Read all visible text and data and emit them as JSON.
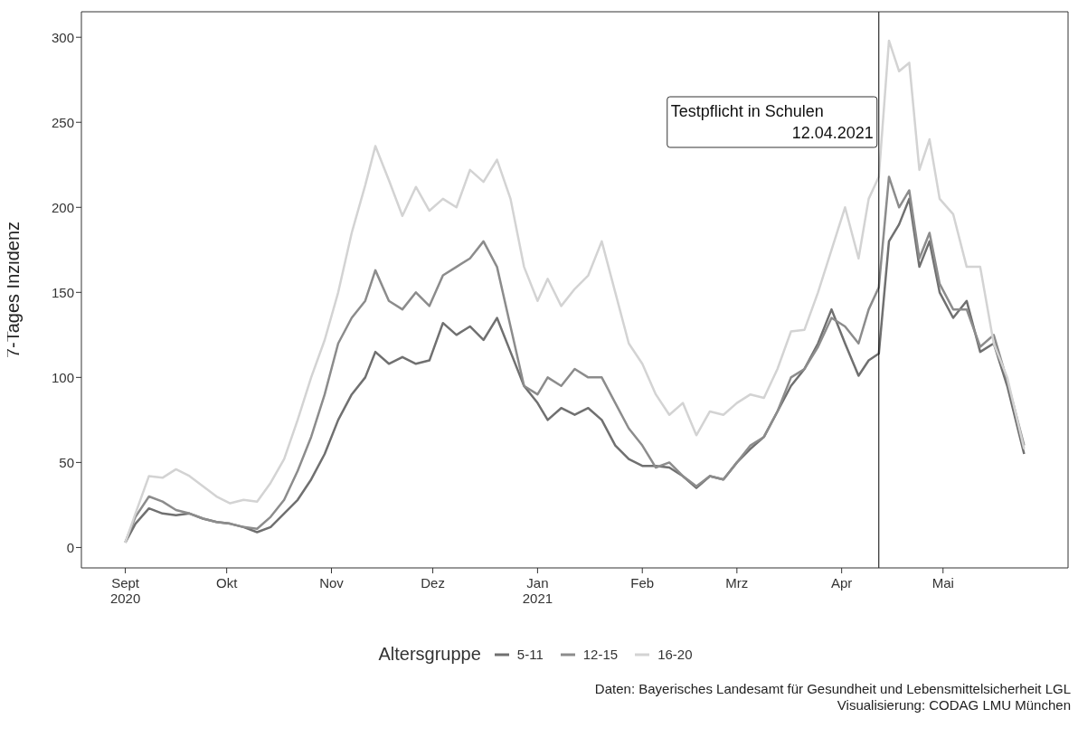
{
  "chart_data": {
    "type": "line",
    "ylabel": "7-Tages Inzidenz",
    "legend_title": "Altersgruppe",
    "legend": "bottom",
    "x": [
      "2020-09-01",
      "2020-09-04",
      "2020-09-08",
      "2020-09-12",
      "2020-09-16",
      "2020-09-20",
      "2020-09-24",
      "2020-09-28",
      "2020-10-02",
      "2020-10-06",
      "2020-10-10",
      "2020-10-14",
      "2020-10-18",
      "2020-10-22",
      "2020-10-26",
      "2020-10-30",
      "2020-11-03",
      "2020-11-07",
      "2020-11-11",
      "2020-11-14",
      "2020-11-18",
      "2020-11-22",
      "2020-11-26",
      "2020-11-30",
      "2020-12-04",
      "2020-12-08",
      "2020-12-12",
      "2020-12-16",
      "2020-12-20",
      "2020-12-24",
      "2020-12-28",
      "2021-01-01",
      "2021-01-04",
      "2021-01-08",
      "2021-01-12",
      "2021-01-16",
      "2021-01-20",
      "2021-01-24",
      "2021-01-28",
      "2021-02-01",
      "2021-02-05",
      "2021-02-09",
      "2021-02-13",
      "2021-02-17",
      "2021-02-21",
      "2021-02-25",
      "2021-03-01",
      "2021-03-05",
      "2021-03-09",
      "2021-03-13",
      "2021-03-17",
      "2021-03-21",
      "2021-03-25",
      "2021-03-29",
      "2021-04-02",
      "2021-04-06",
      "2021-04-09",
      "2021-04-12",
      "2021-04-15",
      "2021-04-18",
      "2021-04-21",
      "2021-04-24",
      "2021-04-27",
      "2021-04-30",
      "2021-05-04",
      "2021-05-08",
      "2021-05-12",
      "2021-05-16",
      "2021-05-20",
      "2021-05-25"
    ],
    "series": [
      {
        "name": "5-11",
        "color": "#707070",
        "values": [
          3,
          14,
          23,
          20,
          19,
          20,
          17,
          15,
          14,
          12,
          9,
          12,
          20,
          28,
          40,
          55,
          75,
          90,
          100,
          115,
          108,
          112,
          108,
          110,
          132,
          125,
          130,
          122,
          135,
          115,
          95,
          85,
          75,
          82,
          78,
          82,
          75,
          60,
          52,
          48,
          48,
          47,
          42,
          35,
          42,
          40,
          50,
          58,
          65,
          80,
          95,
          105,
          120,
          140,
          120,
          101,
          110,
          114,
          180,
          190,
          205,
          165,
          180,
          150,
          135,
          145,
          115,
          120,
          95,
          55
        ]
      },
      {
        "name": "12-15",
        "color": "#8c8c8c",
        "values": [
          3,
          18,
          30,
          27,
          22,
          20,
          17,
          15,
          14,
          12,
          11,
          18,
          28,
          45,
          65,
          90,
          120,
          135,
          145,
          163,
          145,
          140,
          150,
          142,
          160,
          165,
          170,
          180,
          165,
          130,
          95,
          90,
          100,
          95,
          105,
          100,
          100,
          85,
          70,
          60,
          47,
          50,
          42,
          36,
          42,
          40,
          50,
          60,
          65,
          80,
          100,
          105,
          118,
          135,
          130,
          120,
          140,
          153,
          218,
          200,
          210,
          170,
          185,
          155,
          140,
          140,
          118,
          125,
          98,
          60
        ]
      },
      {
        "name": "16-20",
        "color": "#d3d3d3",
        "values": [
          3,
          20,
          42,
          41,
          46,
          42,
          36,
          30,
          26,
          28,
          27,
          38,
          52,
          75,
          100,
          122,
          150,
          185,
          213,
          236,
          216,
          195,
          212,
          198,
          205,
          200,
          222,
          215,
          228,
          205,
          165,
          145,
          158,
          142,
          152,
          160,
          180,
          150,
          120,
          108,
          90,
          78,
          85,
          66,
          80,
          78,
          85,
          90,
          88,
          105,
          127,
          128,
          150,
          175,
          200,
          170,
          205,
          218,
          298,
          280,
          285,
          222,
          240,
          205,
          196,
          165,
          165,
          120,
          100,
          58
        ]
      }
    ],
    "xlim": [
      "2020-08-19",
      "2021-06-07"
    ],
    "xticks": [
      {
        "value": "2020-09-01",
        "label": "Sept\n2020"
      },
      {
        "value": "2020-10-01",
        "label": "Okt"
      },
      {
        "value": "2020-11-01",
        "label": "Nov"
      },
      {
        "value": "2020-12-01",
        "label": "Dez"
      },
      {
        "value": "2021-01-01",
        "label": "Jan\n2021"
      },
      {
        "value": "2021-02-01",
        "label": "Feb"
      },
      {
        "value": "2021-03-01",
        "label": "Mrz"
      },
      {
        "value": "2021-04-01",
        "label": "Apr"
      },
      {
        "value": "2021-05-01",
        "label": "Mai"
      }
    ],
    "ylim": [
      -12,
      315
    ],
    "yticks": [
      0,
      50,
      100,
      150,
      200,
      250,
      300
    ],
    "ref_lines": [
      {
        "axis": "x",
        "value": "2021-04-12",
        "label": "Testpflicht in Schulen\n12.04.2021",
        "color": "#000000"
      }
    ],
    "annotations": [
      "Daten: Bayerisches Landesamt für Gesundheit und Lebensmittelsicherheit LGL",
      "Visualisierung: CODAG LMU München"
    ]
  }
}
